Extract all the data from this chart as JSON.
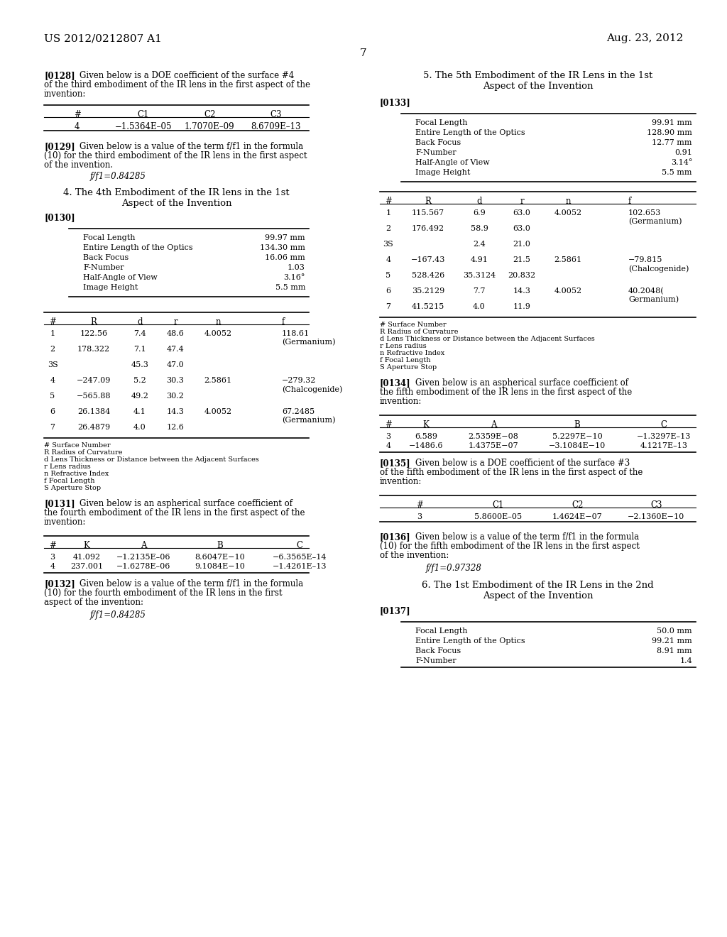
{
  "page_number": "7",
  "header_left": "US 2012/0212807 A1",
  "header_right": "Aug. 23, 2012",
  "background_color": "#ffffff"
}
